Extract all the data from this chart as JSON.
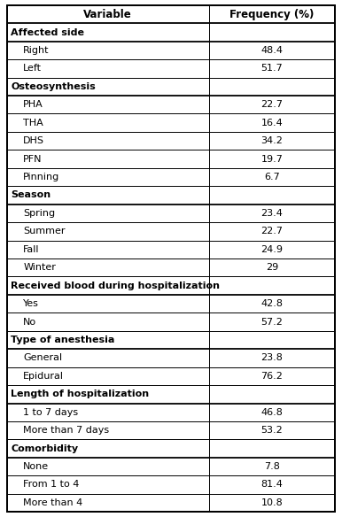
{
  "col1_header": "Variable",
  "col2_header": "Frequency (%)",
  "rows": [
    {
      "label": "Affected side",
      "value": "",
      "is_header": true
    },
    {
      "label": "Right",
      "value": "48.4",
      "is_header": false
    },
    {
      "label": "Left",
      "value": "51.7",
      "is_header": false
    },
    {
      "label": "Osteosynthesis",
      "value": "",
      "is_header": true
    },
    {
      "label": "PHA",
      "value": "22.7",
      "is_header": false
    },
    {
      "label": "THA",
      "value": "16.4",
      "is_header": false
    },
    {
      "label": "DHS",
      "value": "34.2",
      "is_header": false
    },
    {
      "label": "PFN",
      "value": "19.7",
      "is_header": false
    },
    {
      "label": "Pinning",
      "value": "6.7",
      "is_header": false
    },
    {
      "label": "Season",
      "value": "",
      "is_header": true
    },
    {
      "label": "Spring",
      "value": "23.4",
      "is_header": false
    },
    {
      "label": "Summer",
      "value": "22.7",
      "is_header": false
    },
    {
      "label": "Fall",
      "value": "24.9",
      "is_header": false
    },
    {
      "label": "Winter",
      "value": "29",
      "is_header": false
    },
    {
      "label": "Received blood during hospitalization",
      "value": "",
      "is_header": true
    },
    {
      "label": "Yes",
      "value": "42.8",
      "is_header": false
    },
    {
      "label": "No",
      "value": "57.2",
      "is_header": false
    },
    {
      "label": "Type of anesthesia",
      "value": "",
      "is_header": true
    },
    {
      "label": "General",
      "value": "23.8",
      "is_header": false
    },
    {
      "label": "Epidural",
      "value": "76.2",
      "is_header": false
    },
    {
      "label": "Length of hospitalization",
      "value": "",
      "is_header": true
    },
    {
      "label": "1 to 7 days",
      "value": "46.8",
      "is_header": false
    },
    {
      "label": "More than 7 days",
      "value": "53.2",
      "is_header": false
    },
    {
      "label": "Comorbidity",
      "value": "",
      "is_header": true
    },
    {
      "label": "None",
      "value": "7.8",
      "is_header": false
    },
    {
      "label": "From 1 to 4",
      "value": "81.4",
      "is_header": false
    },
    {
      "label": "More than 4",
      "value": "10.8",
      "is_header": false
    }
  ],
  "bg_color": "#ffffff",
  "border_color": "#000000",
  "text_color": "#000000",
  "font_size": 8.0,
  "header_font_size": 8.5,
  "col_split": 0.615,
  "fig_width": 3.86,
  "fig_height": 5.84,
  "dpi": 100
}
